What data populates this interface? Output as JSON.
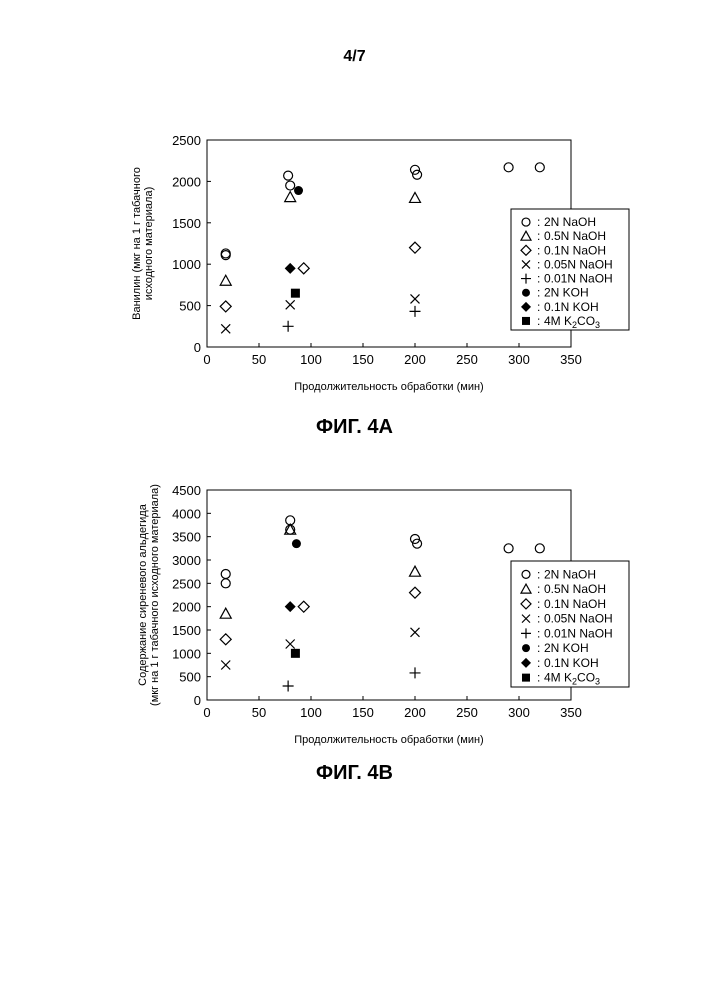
{
  "page_number": "4/7",
  "chart_data": [
    {
      "type": "scatter",
      "caption": "ФИГ. 4А",
      "xlabel": "Продолжительность обработки (мин)",
      "ylabel_lines": [
        "Ванилин (мкг на 1 г табачного",
        "исходного материала)"
      ],
      "xlim": [
        0,
        350
      ],
      "ylim": [
        0,
        2500
      ],
      "xticks": [
        0,
        50,
        100,
        150,
        200,
        250,
        300,
        350
      ],
      "yticks": [
        0,
        500,
        1000,
        1500,
        2000,
        2500
      ],
      "grid": false,
      "legend_position": "right",
      "series": [
        {
          "name": "2N NaOH",
          "marker": "circle-open",
          "x": [
            18,
            18,
            78,
            80,
            200,
            202,
            290,
            320
          ],
          "y": [
            1130,
            1110,
            2070,
            1950,
            2140,
            2080,
            2170,
            2170
          ]
        },
        {
          "name": "0.5N NaOH",
          "marker": "triangle-open",
          "x": [
            18,
            80,
            200
          ],
          "y": [
            800,
            1810,
            1800
          ]
        },
        {
          "name": "0.1N NaOH",
          "marker": "diamond-open",
          "x": [
            18,
            93,
            200
          ],
          "y": [
            490,
            950,
            1200
          ]
        },
        {
          "name": "0.05N NaOH",
          "marker": "x",
          "x": [
            18,
            80,
            200
          ],
          "y": [
            220,
            510,
            580
          ]
        },
        {
          "name": "0.01N NaOH",
          "marker": "plus",
          "x": [
            78,
            200
          ],
          "y": [
            250,
            430
          ]
        },
        {
          "name": "2N KOH",
          "marker": "circle-filled",
          "x": [
            88
          ],
          "y": [
            1890
          ]
        },
        {
          "name": "0.1N KOH",
          "marker": "diamond-filled",
          "x": [
            80
          ],
          "y": [
            950
          ]
        },
        {
          "name": "4M K2CO3",
          "label_main": "4M K",
          "label_sub": "2",
          "label_tail": "CO",
          "label_sub2": "3",
          "marker": "square-filled",
          "x": [
            85
          ],
          "y": [
            650
          ]
        }
      ]
    },
    {
      "type": "scatter",
      "caption": "ФИГ. 4В",
      "xlabel": "Продолжительность обработки (мин)",
      "ylabel_lines": [
        "Содержание сиреневого альдегида",
        "(мкг на 1 г табачного исходного материала)"
      ],
      "xlim": [
        0,
        350
      ],
      "ylim": [
        0,
        4500
      ],
      "xticks": [
        0,
        50,
        100,
        150,
        200,
        250,
        300,
        350
      ],
      "yticks": [
        0,
        500,
        1000,
        1500,
        2000,
        2500,
        3000,
        3500,
        4000,
        4500
      ],
      "grid": false,
      "legend_position": "right",
      "series": [
        {
          "name": "2N NaOH",
          "marker": "circle-open",
          "x": [
            18,
            18,
            80,
            80,
            200,
            202,
            290,
            320
          ],
          "y": [
            2700,
            2500,
            3850,
            3650,
            3450,
            3350,
            3250,
            3250
          ]
        },
        {
          "name": "0.5N NaOH",
          "marker": "triangle-open",
          "x": [
            18,
            80,
            200
          ],
          "y": [
            1850,
            3650,
            2750
          ]
        },
        {
          "name": "0.1N NaOH",
          "marker": "diamond-open",
          "x": [
            18,
            93,
            200
          ],
          "y": [
            1300,
            2000,
            2300
          ]
        },
        {
          "name": "0.05N NaOH",
          "marker": "x",
          "x": [
            18,
            80,
            200
          ],
          "y": [
            750,
            1200,
            1450
          ]
        },
        {
          "name": "0.01N NaOH",
          "marker": "plus",
          "x": [
            78,
            200
          ],
          "y": [
            300,
            580
          ]
        },
        {
          "name": "2N KOH",
          "marker": "circle-filled",
          "x": [
            86
          ],
          "y": [
            3350
          ]
        },
        {
          "name": "0.1N KOH",
          "marker": "diamond-filled",
          "x": [
            80
          ],
          "y": [
            2000
          ]
        },
        {
          "name": "4M K2CO3",
          "label_main": "4M K",
          "label_sub": "2",
          "label_tail": "CO",
          "label_sub2": "3",
          "marker": "square-filled",
          "x": [
            85
          ],
          "y": [
            1000
          ]
        }
      ]
    }
  ]
}
